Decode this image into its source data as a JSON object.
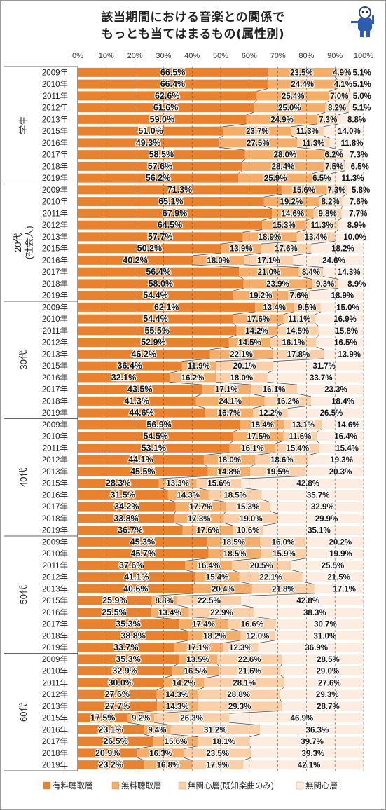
{
  "title_line1": "該当期間における音楽との関係で",
  "title_line2": "もっとも当てはまるもの(属性別)",
  "chart_data": {
    "type": "bar",
    "orientation": "horizontal-stacked-100",
    "xlim": [
      0,
      100
    ],
    "x_ticks": [
      "0%",
      "10%",
      "20%",
      "30%",
      "40%",
      "50%",
      "60%",
      "70%",
      "80%",
      "90%",
      "100%"
    ],
    "series": [
      {
        "name": "有料聴取層",
        "color": "#e8822f"
      },
      {
        "name": "無料聴取層",
        "color": "#f5ad6a"
      },
      {
        "name": "無関心層(既知楽曲のみ)",
        "color": "#fbd0a8"
      },
      {
        "name": "無関心層",
        "color": "#fdece0"
      }
    ],
    "groups": [
      {
        "label": "学生",
        "years": [
          "2009年",
          "2010年",
          "2011年",
          "2012年",
          "2013年",
          "2015年",
          "2016年",
          "2017年",
          "2018年",
          "2019年"
        ],
        "values": [
          [
            66.5,
            23.5,
            4.9,
            5.1
          ],
          [
            66.4,
            24.4,
            4.1,
            5.1
          ],
          [
            62.6,
            25.4,
            7.0,
            5.0
          ],
          [
            61.6,
            25.0,
            8.2,
            5.1
          ],
          [
            59.0,
            24.9,
            7.3,
            8.8
          ],
          [
            51.0,
            23.7,
            11.3,
            14.0
          ],
          [
            49.3,
            27.5,
            11.3,
            11.8
          ],
          [
            58.5,
            28.0,
            6.2,
            7.3
          ],
          [
            57.6,
            28.4,
            7.5,
            6.5
          ],
          [
            56.2,
            25.9,
            6.5,
            11.3
          ]
        ]
      },
      {
        "label": "20代(社会人)",
        "years": [
          "2009年",
          "2010年",
          "2011年",
          "2012年",
          "2013年",
          "2015年",
          "2016年",
          "2017年",
          "2018年",
          "2019年"
        ],
        "values": [
          [
            71.3,
            15.6,
            7.3,
            5.8
          ],
          [
            65.1,
            19.2,
            8.2,
            7.6
          ],
          [
            67.9,
            14.6,
            9.8,
            7.7
          ],
          [
            64.5,
            15.3,
            11.3,
            8.9
          ],
          [
            57.7,
            18.9,
            13.4,
            10.0
          ],
          [
            50.2,
            13.9,
            17.6,
            18.2
          ],
          [
            40.2,
            18.0,
            17.1,
            24.6
          ],
          [
            56.4,
            21.0,
            8.4,
            14.3
          ],
          [
            58.0,
            23.9,
            9.3,
            8.9
          ],
          [
            54.4,
            19.2,
            7.6,
            18.9
          ]
        ]
      },
      {
        "label": "30代",
        "years": [
          "2009年",
          "2010年",
          "2011年",
          "2012年",
          "2013年",
          "2015年",
          "2016年",
          "2017年",
          "2018年",
          "2019年"
        ],
        "values": [
          [
            62.1,
            13.4,
            9.5,
            15.0
          ],
          [
            54.4,
            17.6,
            11.1,
            16.9
          ],
          [
            55.5,
            14.2,
            14.5,
            15.8
          ],
          [
            52.9,
            14.5,
            16.1,
            16.5
          ],
          [
            46.2,
            22.1,
            17.8,
            13.9
          ],
          [
            36.4,
            11.9,
            20.1,
            31.7
          ],
          [
            32.1,
            16.2,
            18.0,
            33.7
          ],
          [
            43.5,
            17.1,
            16.1,
            23.3
          ],
          [
            41.3,
            24.1,
            16.2,
            18.4
          ],
          [
            44.6,
            16.7,
            12.2,
            26.5
          ]
        ]
      },
      {
        "label": "40代",
        "years": [
          "2009年",
          "2010年",
          "2011年",
          "2012年",
          "2013年",
          "2015年",
          "2016年",
          "2017年",
          "2018年",
          "2019年"
        ],
        "values": [
          [
            56.9,
            15.4,
            13.1,
            14.6
          ],
          [
            54.5,
            17.5,
            11.6,
            16.4
          ],
          [
            53.1,
            16.1,
            15.4,
            15.4
          ],
          [
            44.1,
            18.0,
            18.6,
            19.3
          ],
          [
            45.5,
            14.8,
            19.5,
            20.3
          ],
          [
            28.3,
            13.3,
            15.6,
            42.8
          ],
          [
            31.5,
            14.3,
            18.5,
            35.7
          ],
          [
            34.2,
            17.7,
            15.3,
            32.9
          ],
          [
            33.8,
            17.3,
            19.0,
            29.9
          ],
          [
            36.7,
            17.6,
            10.6,
            35.1
          ]
        ]
      },
      {
        "label": "50代",
        "years": [
          "2009年",
          "2010年",
          "2011年",
          "2012年",
          "2013年",
          "2015年",
          "2016年",
          "2017年",
          "2018年",
          "2019年"
        ],
        "values": [
          [
            45.3,
            18.5,
            16.0,
            20.2
          ],
          [
            45.7,
            18.5,
            15.9,
            19.9
          ],
          [
            37.6,
            16.4,
            20.5,
            25.5
          ],
          [
            41.1,
            15.4,
            22.1,
            21.5
          ],
          [
            40.6,
            20.4,
            21.8,
            17.1
          ],
          [
            25.9,
            8.8,
            22.5,
            42.8
          ],
          [
            25.5,
            13.4,
            22.9,
            38.3
          ],
          [
            35.3,
            17.4,
            16.6,
            30.7
          ],
          [
            38.8,
            18.2,
            12.0,
            31.0
          ],
          [
            33.7,
            17.1,
            12.3,
            36.9
          ]
        ]
      },
      {
        "label": "60代",
        "years": [
          "2009年",
          "2010年",
          "2011年",
          "2012年",
          "2013年",
          "2015年",
          "2016年",
          "2017年",
          "2018年",
          "2019年"
        ],
        "values": [
          [
            35.3,
            13.5,
            22.6,
            28.5
          ],
          [
            32.9,
            16.5,
            21.6,
            29.0
          ],
          [
            30.0,
            14.2,
            28.1,
            27.6
          ],
          [
            27.6,
            14.3,
            28.8,
            29.3
          ],
          [
            27.7,
            14.3,
            29.3,
            28.7
          ],
          [
            17.5,
            9.2,
            26.3,
            46.9
          ],
          [
            23.1,
            9.4,
            31.2,
            36.3
          ],
          [
            26.5,
            15.6,
            18.1,
            39.7
          ],
          [
            20.9,
            16.3,
            23.5,
            39.3
          ],
          [
            23.2,
            16.8,
            17.9,
            42.1
          ]
        ]
      }
    ],
    "legend_position": "bottom",
    "grid": true
  }
}
